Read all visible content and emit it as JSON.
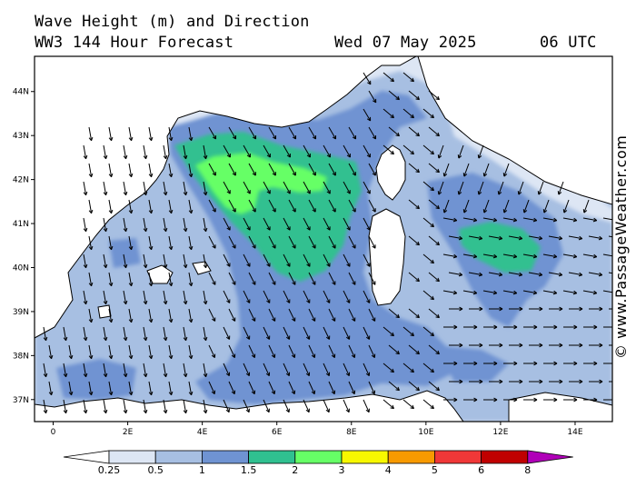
{
  "header": {
    "title": "Wave Height (m) and Direction",
    "model": "WW3 144 Hour Forecast",
    "date": "Wed 07 May 2025",
    "time": "06 UTC"
  },
  "credit": "© www.PassageWeather.com",
  "axes": {
    "lat_labels": [
      "44N",
      "43N",
      "42N",
      "41N",
      "40N",
      "39N",
      "38N",
      "37N"
    ],
    "lat_values": [
      44,
      43,
      42,
      41,
      40,
      39,
      38,
      37
    ],
    "lon_labels": [
      "0",
      "2E",
      "4E",
      "6E",
      "8E",
      "10E",
      "12E",
      "14E"
    ],
    "lon_values": [
      0,
      2,
      4,
      6,
      8,
      10,
      12,
      14
    ],
    "lon_range": [
      -0.5,
      15
    ],
    "lat_range": [
      36.5,
      44.8
    ]
  },
  "legend": {
    "ticks": [
      "0.25",
      "0.5",
      "1",
      "1.5",
      "2",
      "3",
      "4",
      "5",
      "6",
      "8"
    ],
    "colors": [
      "#ffffff",
      "#dde6f4",
      "#a7bfe2",
      "#6f93d2",
      "#30c090",
      "#66ff66",
      "#f8f800",
      "#f89a00",
      "#f03838",
      "#c00000",
      "#b000b8"
    ]
  },
  "colors": {
    "land": "#ffffff",
    "sea_low": "#dde6f4",
    "sea_05": "#a7bfe2",
    "sea_1": "#6f93d2",
    "sea_15": "#30c090",
    "sea_2": "#66ff66"
  }
}
